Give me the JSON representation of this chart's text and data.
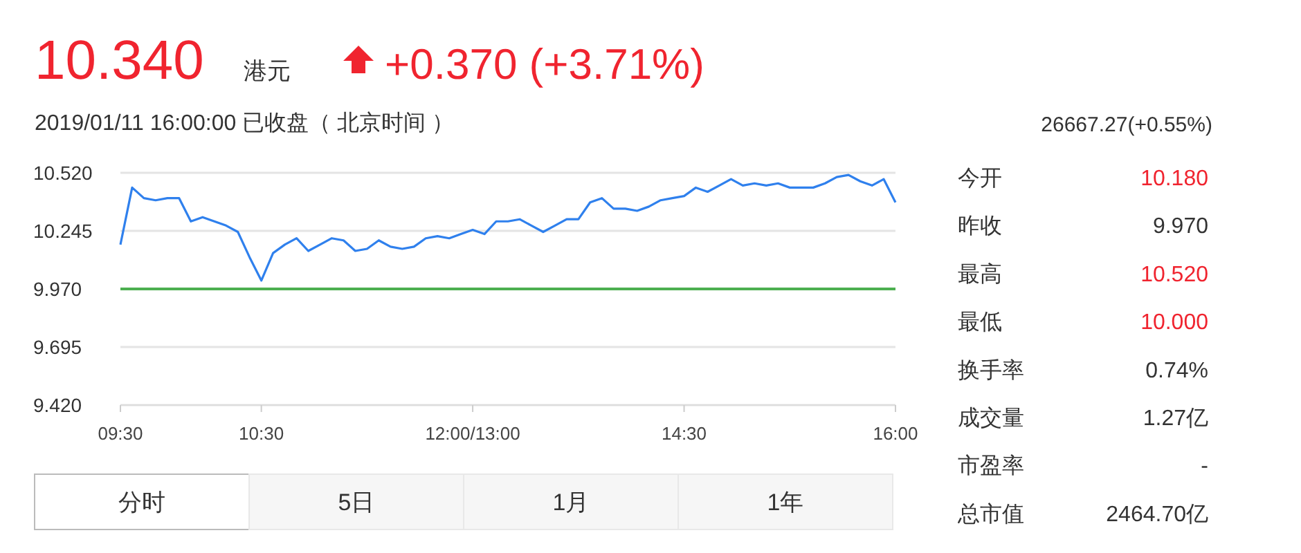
{
  "chart_data": {
    "type": "line",
    "title": "10.340",
    "subtitle": "2019/01/11 16:00:00   已收盘（ 北京时间 ）",
    "annotations": [
      "港元",
      "+0.370 (+3.71%)",
      "26667.27(+0.55%)",
      "今开",
      "10.180",
      "昨收",
      "9.970",
      "最高",
      "10.520",
      "最低",
      "10.000",
      "换手率",
      "0.74%",
      "成交量",
      "1.27亿",
      "市盈率",
      "-",
      "总市值",
      "2464.70亿",
      "分时",
      "5日",
      "1月",
      "1年"
    ],
    "categories": [
      "09:30",
      null,
      null,
      null,
      null,
      null,
      null,
      null,
      null,
      null,
      null,
      null,
      "10:30",
      null,
      null,
      null,
      null,
      null,
      null,
      null,
      null,
      null,
      null,
      null,
      null,
      null,
      null,
      null,
      null,
      null,
      "12:00/13:00",
      null,
      null,
      null,
      null,
      null,
      null,
      null,
      null,
      null,
      null,
      null,
      null,
      null,
      null,
      null,
      null,
      null,
      "14:30",
      null,
      null,
      null,
      null,
      null,
      null,
      null,
      null,
      null,
      null,
      null,
      null,
      null,
      null,
      null,
      null,
      null,
      "16:00"
    ],
    "series": [
      {
        "color": "#2f80ed",
        "values": [
          10.18,
          10.45,
          10.4,
          10.39,
          10.4,
          10.4,
          10.29,
          10.31,
          10.29,
          10.27,
          10.24,
          10.12,
          10.01,
          10.14,
          10.18,
          10.21,
          10.15,
          10.18,
          10.21,
          10.2,
          10.15,
          10.16,
          10.2,
          10.17,
          10.16,
          10.17,
          10.21,
          10.22,
          10.21,
          10.23,
          10.25,
          10.23,
          10.29,
          10.29,
          10.3,
          10.27,
          10.24,
          10.27,
          10.3,
          10.3,
          10.38,
          10.4,
          10.35,
          10.35,
          10.34,
          10.36,
          10.39,
          10.4,
          10.41,
          10.45,
          10.43,
          10.46,
          10.49,
          10.46,
          10.47,
          10.46,
          10.47,
          10.45,
          10.45,
          10.45,
          10.47,
          10.5,
          10.51,
          10.48,
          10.46,
          10.49,
          10.38
        ]
      }
    ],
    "ylim": [
      9.42,
      10.52
    ],
    "yticks": [
      {
        "value": 9.42,
        "label": "9.420"
      },
      {
        "value": 9.695,
        "label": "9.695"
      },
      {
        "value": 9.97,
        "label": "9.970"
      },
      {
        "value": 10.245,
        "label": "10.245"
      },
      {
        "value": 10.52,
        "label": "10.520"
      }
    ],
    "ref_lines": [
      {
        "axis": "y",
        "value": 9.97,
        "color": "#4caf50"
      }
    ],
    "grid": "y",
    "marker": "none",
    "line_style": "solid"
  }
}
